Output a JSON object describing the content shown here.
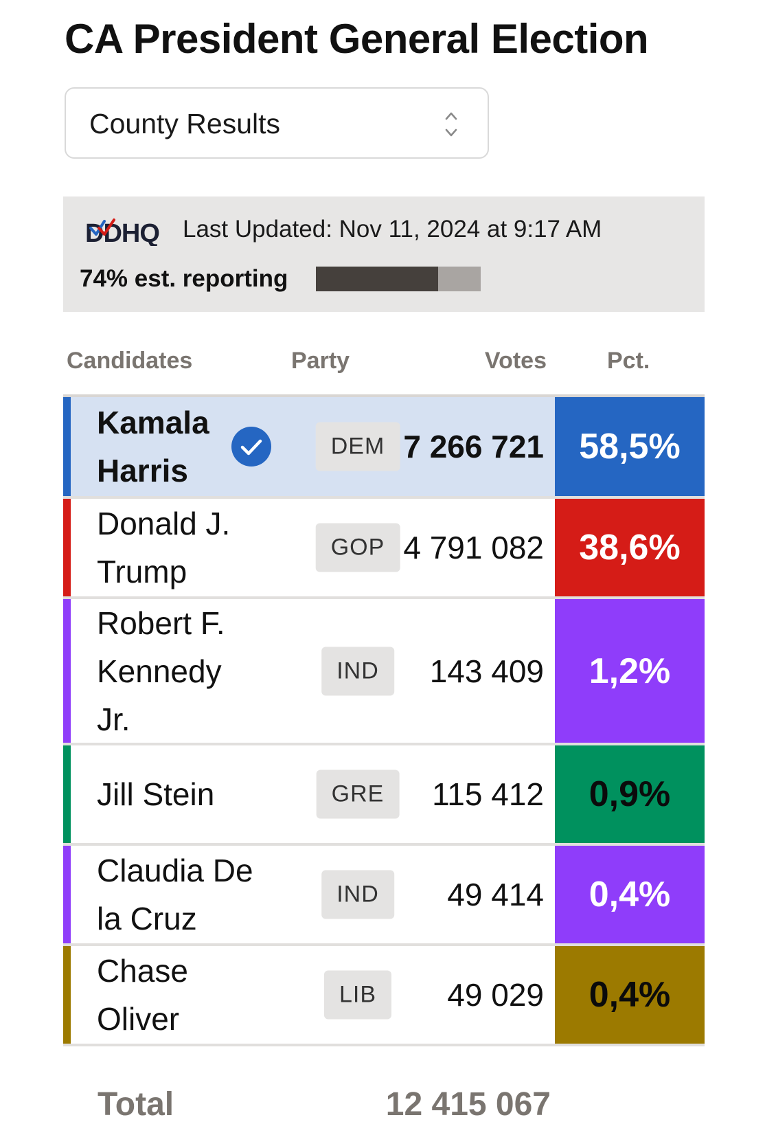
{
  "page": {
    "title": "CA President General Election"
  },
  "select": {
    "value": "County Results"
  },
  "info": {
    "logo_text": "DDHQ",
    "last_updated": "Last Updated: Nov 11, 2024 at 9:17 AM",
    "reporting_label": "74% est. reporting",
    "reporting_fraction": 0.74
  },
  "table": {
    "headers": {
      "candidates": "Candidates",
      "party": "Party",
      "votes": "Votes",
      "pct": "Pct."
    },
    "rows": [
      {
        "name": "Kamala Harris",
        "party": "DEM",
        "votes": "7 266 721",
        "pct": "58,5%",
        "winner": true,
        "color": "#2566c2",
        "pct_text_color": "#ffffff",
        "row_bg": "#d6e1f2"
      },
      {
        "name": "Donald J. Trump",
        "party": "GOP",
        "votes": "4 791 082",
        "pct": "38,6%",
        "winner": false,
        "color": "#d51c17",
        "pct_text_color": "#ffffff",
        "row_bg": "#ffffff"
      },
      {
        "name": "Robert F. Kennedy Jr.",
        "party": "IND",
        "votes": "143 409",
        "pct": "1,2%",
        "winner": false,
        "color": "#8f3dfa",
        "pct_text_color": "#ffffff",
        "row_bg": "#ffffff"
      },
      {
        "name": "Jill Stein",
        "party": "GRE",
        "votes": "115 412",
        "pct": "0,9%",
        "winner": false,
        "color": "#00915e",
        "pct_text_color": "#0b0b0b",
        "row_bg": "#ffffff"
      },
      {
        "name": "Claudia De la Cruz",
        "party": "IND",
        "votes": "49 414",
        "pct": "0,4%",
        "winner": false,
        "color": "#8f3dfa",
        "pct_text_color": "#ffffff",
        "row_bg": "#ffffff"
      },
      {
        "name": "Chase Oliver",
        "party": "LIB",
        "votes": "49 029",
        "pct": "0,4%",
        "winner": false,
        "color": "#9c7a00",
        "pct_text_color": "#0b0b0b",
        "row_bg": "#ffffff"
      }
    ],
    "total": {
      "label": "Total",
      "votes": "12 415 067"
    }
  }
}
